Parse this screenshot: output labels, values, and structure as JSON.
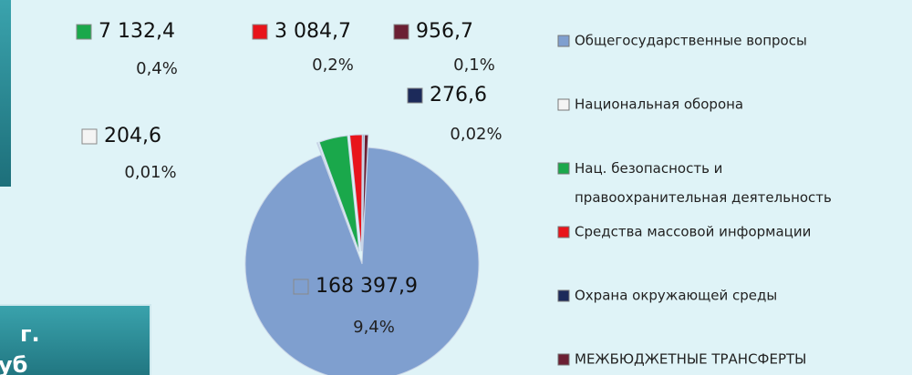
{
  "chart_data": {
    "type": "pie",
    "categories": [
      "Общегосударственные вопросы",
      "Национальная оборона",
      "Нац. безопасность и\nправоохранительная деятельность",
      "Средства массовой информации",
      "Охрана окружающей среды",
      "МЕЖБЮДЖЕТНЫЕ ТРАНСФЕРТЫ"
    ],
    "values": [
      168397.9,
      204.6,
      7132.4,
      3084.7,
      276.6,
      956.7
    ],
    "value_labels": [
      "168 397,9",
      "204,6",
      "7 132,4",
      "3 084,7",
      "276,6",
      "956,7"
    ],
    "percent_labels": [
      "9,4%",
      "0,01%",
      "0,4%",
      "0,2%",
      "0,02%",
      "0,1%"
    ],
    "colors": [
      "#7f9fcf",
      "#f4f4f4",
      "#1aa84b",
      "#e8141b",
      "#1c2a5a",
      "#6b1f33"
    ],
    "legend": "right"
  },
  "fragments": [
    "г.",
    "уб"
  ]
}
